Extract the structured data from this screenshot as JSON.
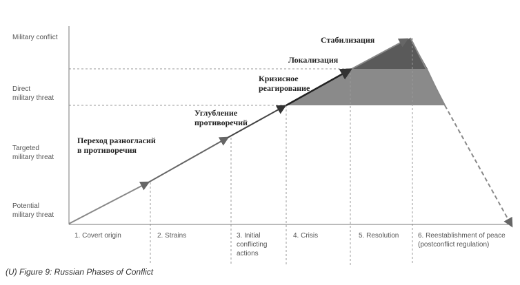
{
  "levels": [
    {
      "lines": [
        "Military conflict"
      ]
    },
    {
      "lines": [
        "Direct",
        "military threat"
      ]
    },
    {
      "lines": [
        "Targeted",
        "military threat"
      ]
    },
    {
      "lines": [
        "Potential",
        "military threat"
      ]
    }
  ],
  "stages": [
    {
      "lines": [
        "Стабилизация"
      ]
    },
    {
      "lines": [
        "Локализация"
      ]
    },
    {
      "lines": [
        "Кризисное",
        "реагирование"
      ]
    },
    {
      "lines": [
        "Углубление",
        "противоречий"
      ]
    },
    {
      "lines": [
        "Переход разногласий",
        "в противоречия"
      ]
    }
  ],
  "phases": [
    {
      "lines": [
        "1. Covert origin"
      ]
    },
    {
      "lines": [
        "2. Strains"
      ]
    },
    {
      "lines": [
        "3. Initial",
        "conflicting",
        "actions"
      ]
    },
    {
      "lines": [
        "4. Crisis"
      ]
    },
    {
      "lines": [
        "5. Resolution"
      ]
    },
    {
      "lines": [
        "6. Reestablishment of peace",
        "(postconflict regulation)"
      ]
    }
  ],
  "caption": "(U) Figure 9: Russian Phases of Conflict"
}
